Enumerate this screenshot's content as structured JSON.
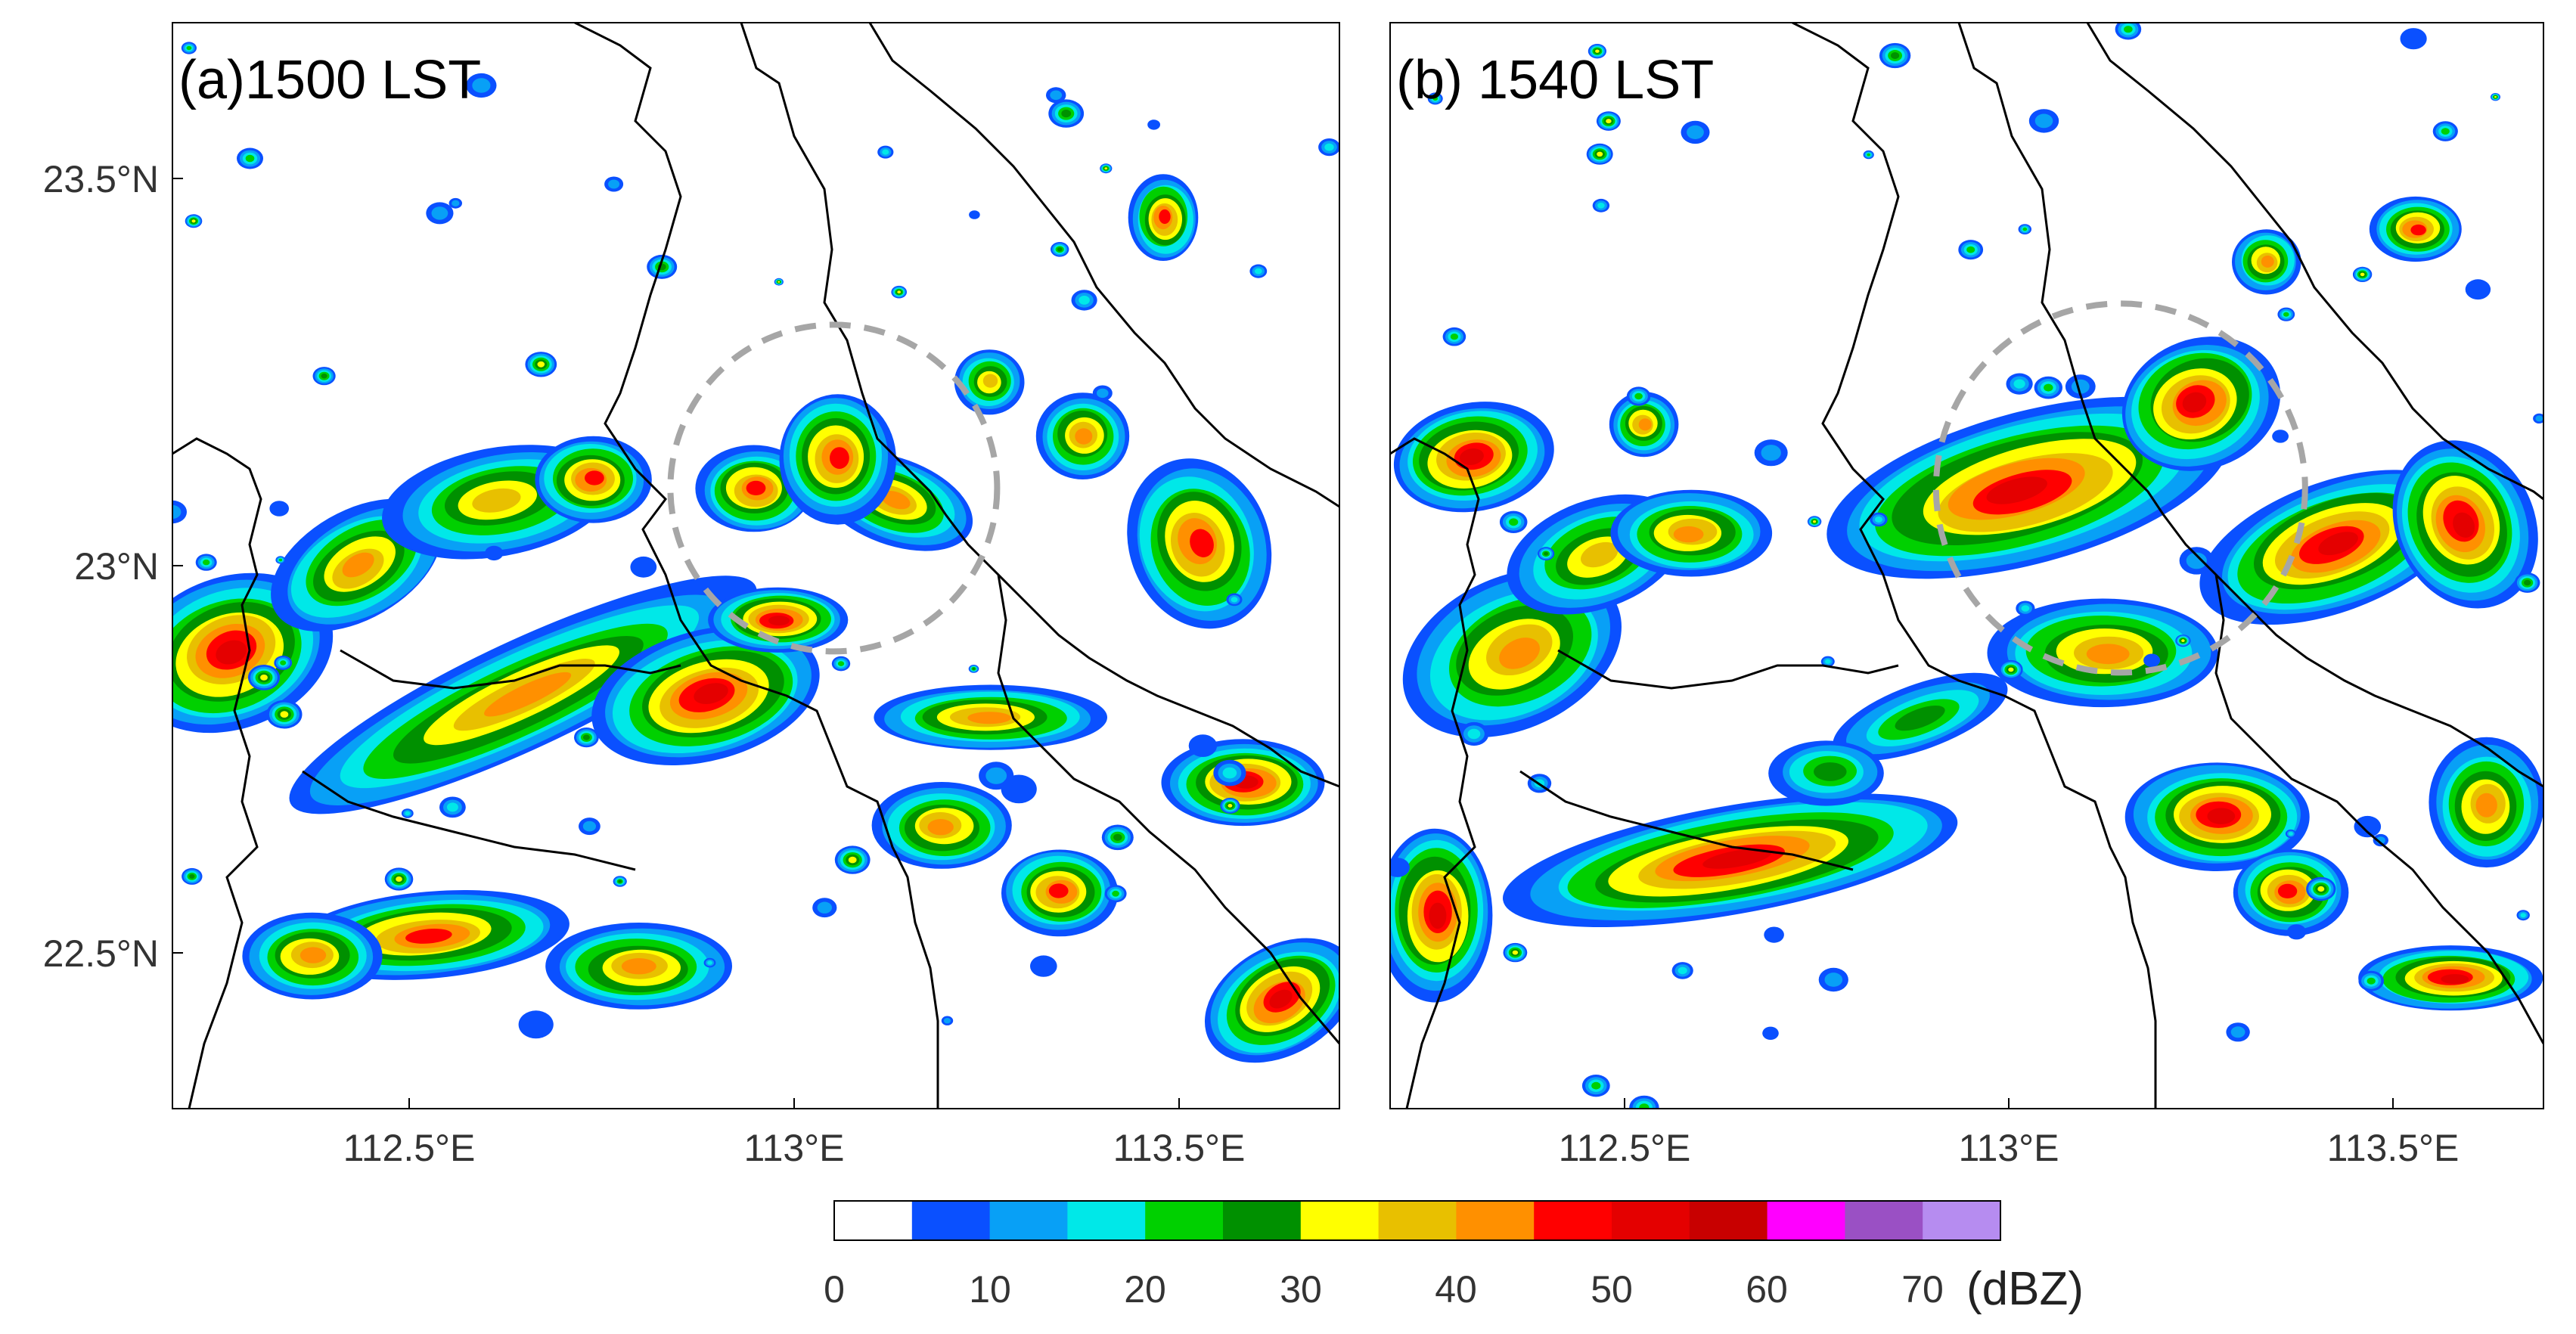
{
  "panels": [
    {
      "id": "a",
      "label": "(a)1500 LST",
      "x_ticks": [
        "112.5°E",
        "113°E",
        "113.5°E"
      ],
      "y_ticks": [
        "23.5°N",
        "23°N",
        "22.5°N"
      ],
      "circle": {
        "center_lon": 113.05,
        "center_lat": 23.1,
        "radius_deg": 0.21
      }
    },
    {
      "id": "b",
      "label": "(b) 1540 LST",
      "x_ticks": [
        "112.5°E",
        "113°E",
        "113.5°E"
      ],
      "y_ticks": [],
      "circle": {
        "center_lon": 113.15,
        "center_lat": 23.1,
        "radius_deg": 0.24
      }
    }
  ],
  "map_extent": {
    "lon_min": 112.2,
    "lon_max": 113.7,
    "lat_min": 22.3,
    "lat_max": 23.7
  },
  "colorbar": {
    "unit": "(dBZ)",
    "tick_labels": [
      "0",
      "10",
      "20",
      "30",
      "40",
      "50",
      "60",
      "70"
    ],
    "levels": [
      0,
      5,
      10,
      15,
      20,
      25,
      30,
      35,
      40,
      45,
      50,
      55,
      60,
      65,
      70,
      75
    ],
    "colors": [
      "#ffffff",
      "#0a50ff",
      "#08a0f6",
      "#00e8e8",
      "#00d000",
      "#009000",
      "#ffff00",
      "#e8c000",
      "#ff9000",
      "#ff0000",
      "#e40000",
      "#c80000",
      "#ff00ff",
      "#9a50c4",
      "#b68cf0"
    ]
  }
}
